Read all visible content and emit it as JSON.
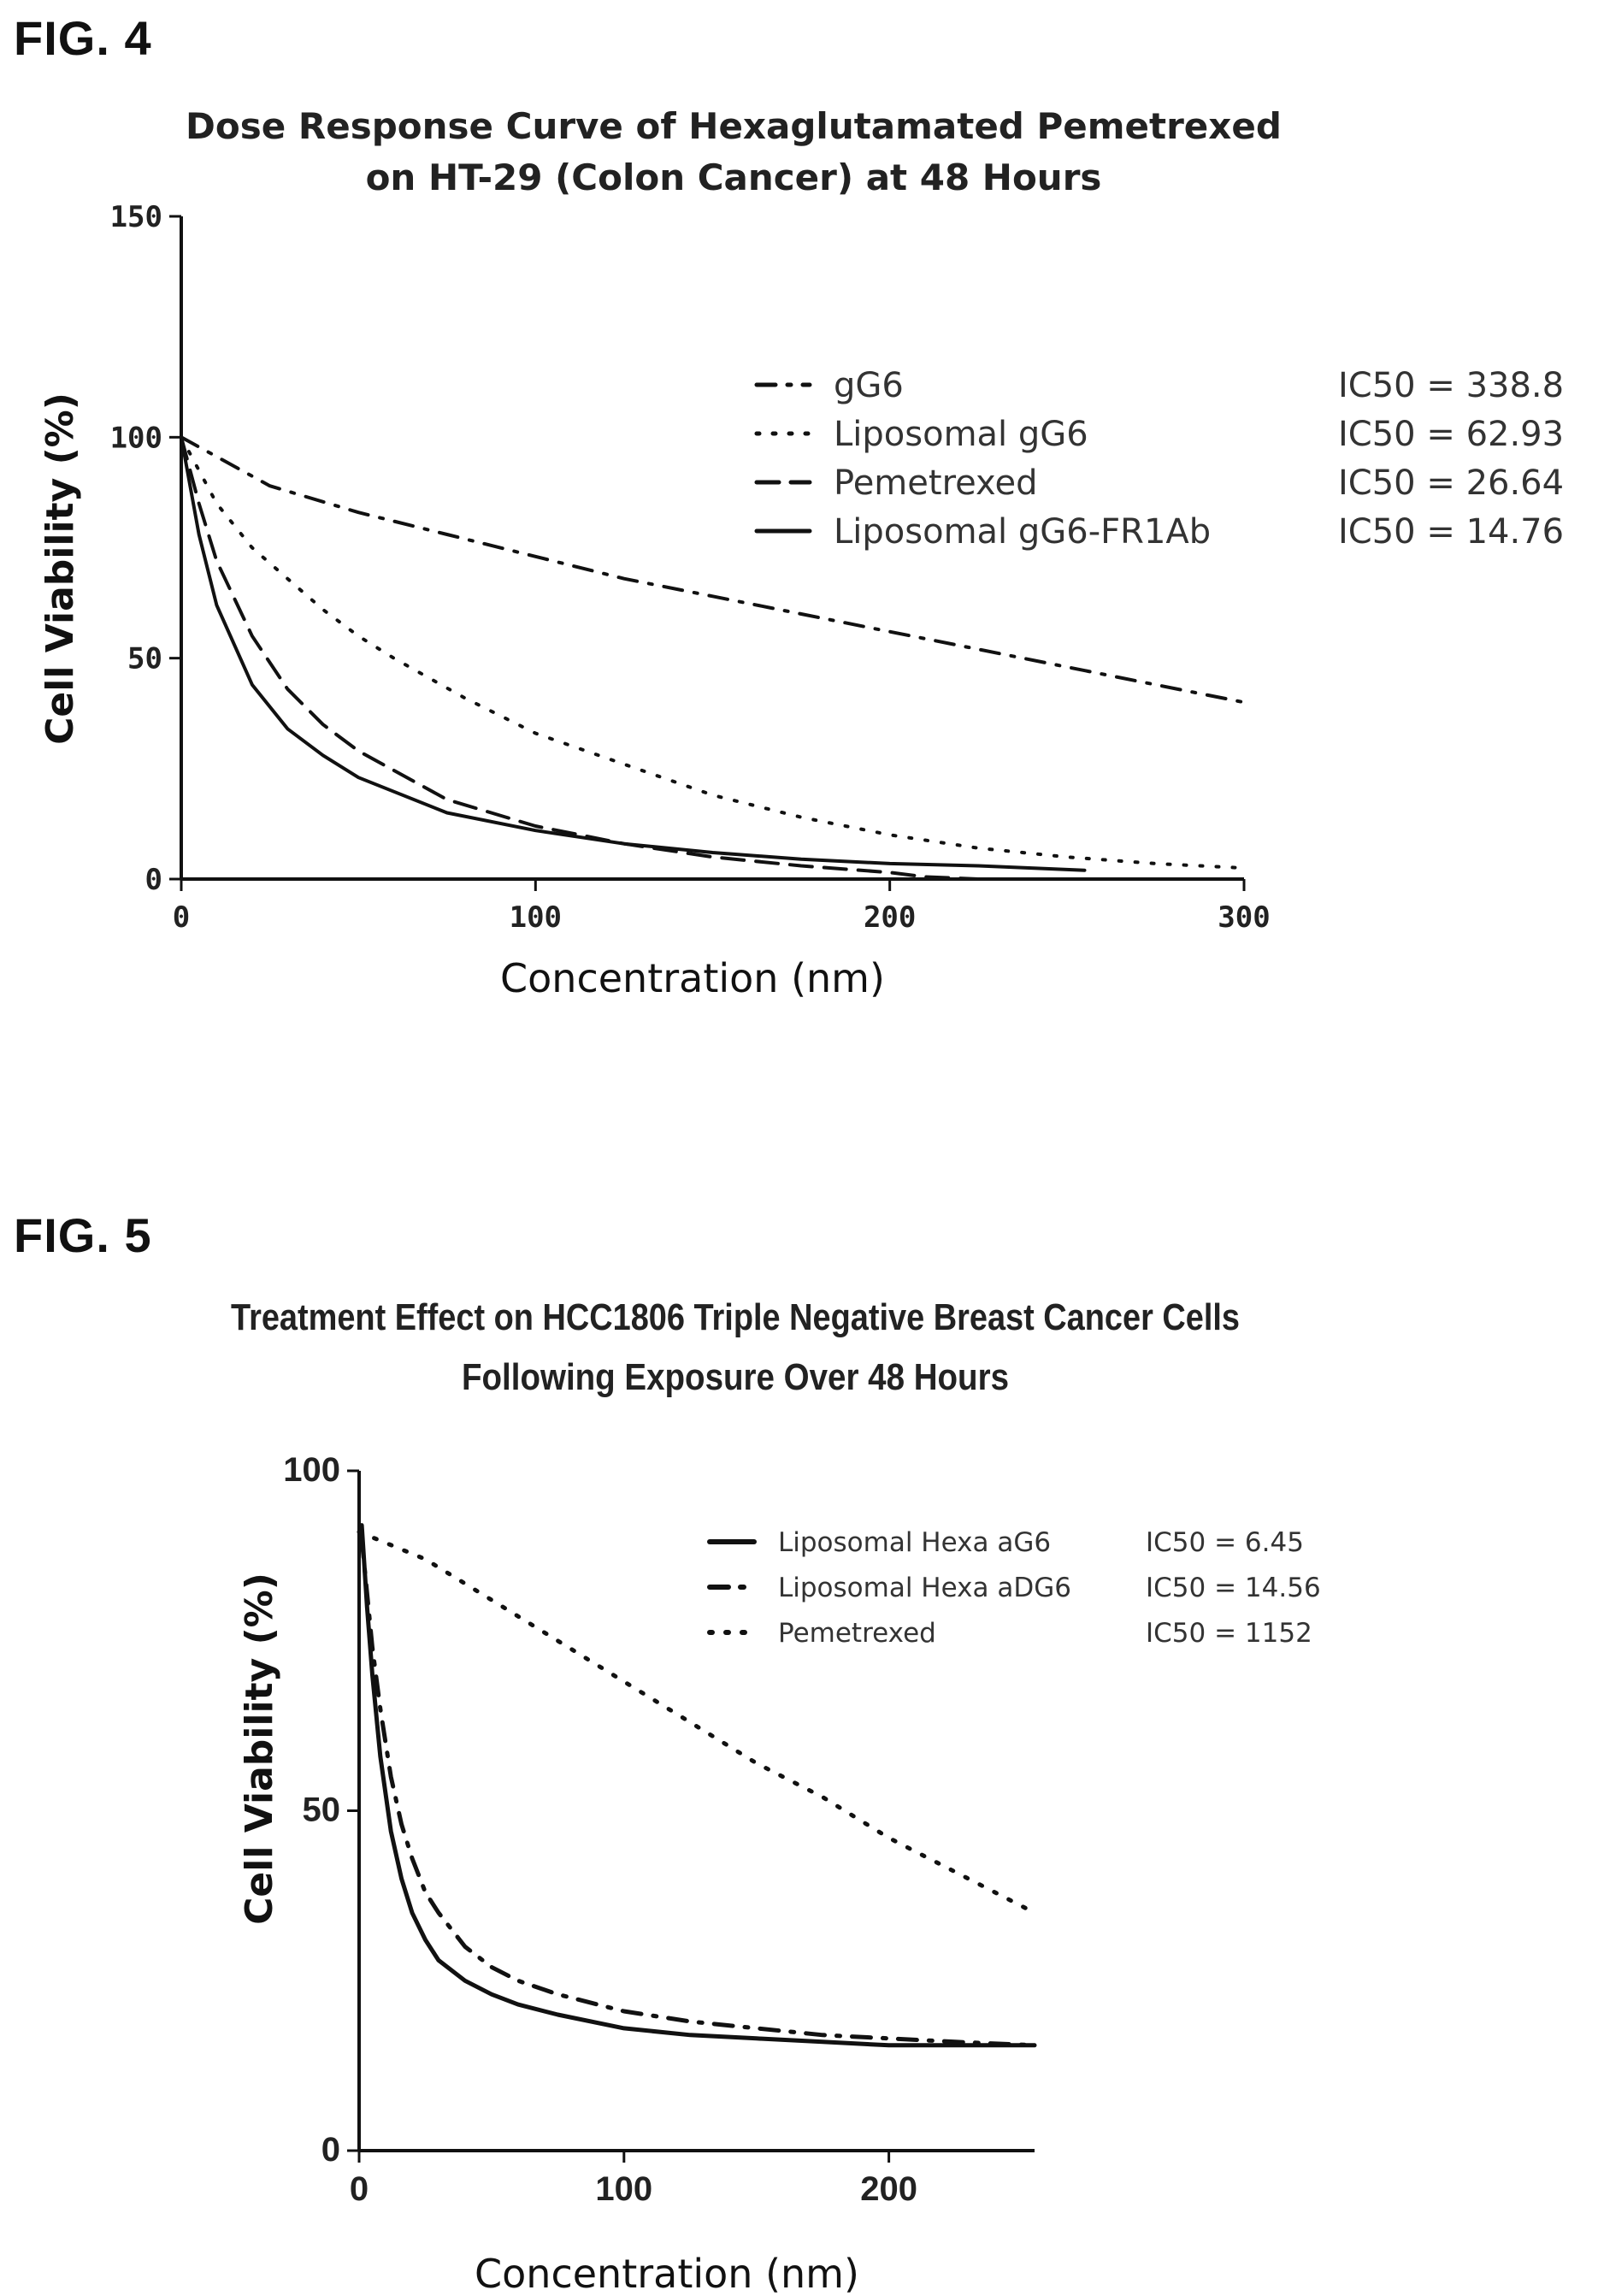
{
  "fig4": {
    "label": "FIG. 4",
    "chart_data": {
      "type": "line",
      "title": [
        "Dose Response Curve of Hexaglutamated Pemetrexed",
        "on HT-29 (Colon Cancer) at 48 Hours"
      ],
      "xlabel": "Concentration (nm)",
      "ylabel": "Cell Viability (%)",
      "xlim": [
        0,
        300
      ],
      "ylim": [
        0,
        150
      ],
      "xticks": [
        0,
        100,
        200,
        300
      ],
      "yticks": [
        0,
        50,
        100,
        150
      ],
      "grid": false,
      "legend_position": "top-right",
      "series": [
        {
          "name": "gG6",
          "ic50": "IC50 = 338.8",
          "style": "dash-dot",
          "x": [
            0,
            25,
            50,
            75,
            100,
            125,
            150,
            175,
            200,
            225,
            250,
            275,
            300
          ],
          "y": [
            100,
            89,
            83,
            78,
            73,
            68,
            64,
            60,
            56,
            52,
            48,
            44,
            40
          ]
        },
        {
          "name": "Liposomal gG6",
          "ic50": "IC50 = 62.93",
          "style": "dotted",
          "x": [
            0,
            10,
            20,
            30,
            40,
            50,
            60,
            80,
            100,
            125,
            150,
            175,
            200,
            225,
            250,
            275,
            300
          ],
          "y": [
            100,
            85,
            75,
            68,
            61,
            55,
            50,
            41,
            33,
            26,
            19,
            14,
            10,
            7,
            5,
            3.5,
            2.5
          ]
        },
        {
          "name": "Pemetrexed",
          "ic50": "IC50 = 26.64",
          "style": "dashed",
          "x": [
            0,
            5,
            10,
            20,
            30,
            40,
            50,
            75,
            100,
            125,
            150,
            175,
            200,
            210,
            225
          ],
          "y": [
            100,
            85,
            72,
            55,
            43,
            35,
            29,
            18,
            12,
            8,
            5,
            3,
            1.5,
            0.5,
            0
          ]
        },
        {
          "name": "Liposomal gG6-FR1Ab",
          "ic50": "IC50 = 14.76",
          "style": "solid",
          "x": [
            0,
            5,
            10,
            20,
            30,
            40,
            50,
            75,
            100,
            125,
            150,
            175,
            200,
            225,
            255
          ],
          "y": [
            100,
            78,
            62,
            44,
            34,
            28,
            23,
            15,
            11,
            8,
            6,
            4.5,
            3.5,
            3,
            2
          ]
        }
      ]
    }
  },
  "fig5": {
    "label": "FIG. 5",
    "chart_data": {
      "type": "line",
      "title": [
        "Treatment Effect on HCC1806 Triple Negative Breast Cancer Cells",
        "Following Exposure Over 48 Hours"
      ],
      "xlabel": "Concentration (nm)",
      "ylabel": "Cell Viability (%)",
      "xlim": [
        0,
        255
      ],
      "ylim": [
        0,
        100
      ],
      "xticks": [
        0,
        100,
        200
      ],
      "yticks": [
        0,
        50,
        100
      ],
      "grid": false,
      "legend_position": "top-right",
      "series": [
        {
          "name": "Liposomal Hexa aG6",
          "ic50": "IC50 = 6.45",
          "style": "solid",
          "x": [
            1,
            3,
            5,
            8,
            12,
            16,
            20,
            25,
            30,
            40,
            50,
            60,
            75,
            100,
            125,
            150,
            175,
            200,
            225,
            255
          ],
          "y": [
            92,
            80,
            70,
            58,
            47,
            40,
            35,
            31,
            28,
            25,
            23,
            21.5,
            20,
            18,
            17,
            16.5,
            16,
            15.5,
            15.5,
            15.5
          ]
        },
        {
          "name": "Liposomal Hexa aDG6",
          "ic50": "IC50 = 14.56",
          "style": "dash-dot",
          "x": [
            1,
            3,
            5,
            8,
            12,
            16,
            20,
            25,
            30,
            40,
            50,
            60,
            75,
            100,
            125,
            150,
            175,
            200,
            225,
            255
          ],
          "y": [
            90,
            82,
            74,
            65,
            55,
            48,
            43,
            38,
            35,
            30,
            27,
            25,
            23,
            20.5,
            19,
            18,
            17,
            16.5,
            16,
            15.5
          ]
        },
        {
          "name": "Pemetrexed",
          "ic50": "IC50 = 1152",
          "style": "dotted",
          "x": [
            0,
            25,
            50,
            75,
            100,
            125,
            150,
            175,
            200,
            225,
            255
          ],
          "y": [
            91,
            87,
            81,
            75,
            69,
            63,
            57,
            52,
            46,
            41,
            35
          ]
        }
      ]
    }
  }
}
